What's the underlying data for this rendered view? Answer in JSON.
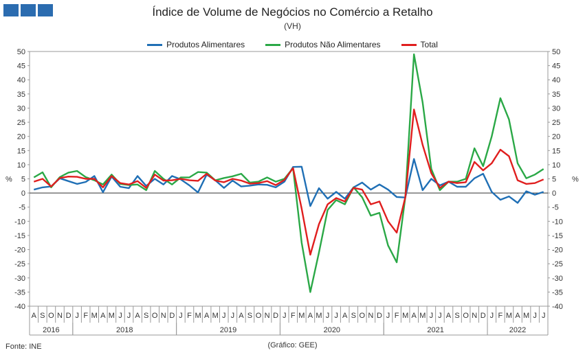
{
  "title": "Índice de Volume de Negócios no Comércio a Retalho",
  "subtitle": "(VH)",
  "source": "Fonte: INE",
  "credit": "(Gráfico: GEE)",
  "chart_data": {
    "type": "line",
    "yunit_label": "%",
    "ylim": [
      -40,
      50
    ],
    "yticks": [
      50,
      45,
      40,
      35,
      30,
      25,
      20,
      15,
      10,
      5,
      0,
      -5,
      -10,
      -15,
      -20,
      -25,
      -30,
      -35,
      -40
    ],
    "x": [
      "A",
      "S",
      "O",
      "N",
      "D",
      "J",
      "F",
      "M",
      "A",
      "M",
      "J",
      "J",
      "A",
      "S",
      "O",
      "N",
      "D",
      "J",
      "F",
      "M",
      "A",
      "M",
      "J",
      "J",
      "A",
      "S",
      "O",
      "N",
      "D",
      "J",
      "F",
      "M",
      "A",
      "M",
      "J",
      "J",
      "A",
      "S",
      "O",
      "N",
      "D",
      "J",
      "F",
      "M",
      "A",
      "M",
      "J",
      "J",
      "A",
      "S",
      "O",
      "N",
      "D",
      "J",
      "F",
      "M",
      "A",
      "M",
      "J",
      "J"
    ],
    "years": [
      {
        "label": "2016",
        "start": 0,
        "end": 4
      },
      {
        "label": "2018",
        "start": 5,
        "end": 16
      },
      {
        "label": "2019",
        "start": 17,
        "end": 28
      },
      {
        "label": "2020",
        "start": 29,
        "end": 40
      },
      {
        "label": "2021",
        "start": 41,
        "end": 52
      },
      {
        "label": "2022",
        "start": 53,
        "end": 59
      }
    ],
    "series": [
      {
        "name": "Produtos Alimentares",
        "color": "#1f6fb5",
        "values": [
          1.2,
          2.0,
          2.3,
          5.2,
          4.2,
          3.2,
          3.9,
          6.0,
          0.3,
          5.8,
          2.2,
          1.7,
          6.0,
          2.5,
          5.0,
          3.0,
          6.0,
          4.8,
          2.7,
          0.2,
          6.5,
          4.5,
          1.8,
          4.4,
          2.3,
          2.6,
          3.0,
          2.9,
          2.0,
          4.0,
          9.2,
          9.3,
          -4.6,
          1.7,
          -2.0,
          0.4,
          -2.0,
          2.0,
          3.7,
          1.2,
          3.0,
          1.2,
          -1.4,
          -1.6,
          12.0,
          1.0,
          5.0,
          2.7,
          4.0,
          2.2,
          2.2,
          5.2,
          6.8,
          0.4,
          -2.4,
          -1.2,
          -3.5,
          0.6,
          -0.6,
          0.4
        ]
      },
      {
        "name": "Produtos Não Alimentares",
        "color": "#2aa846",
        "values": [
          5.5,
          7.3,
          2.0,
          5.6,
          7.2,
          7.8,
          5.6,
          4.5,
          3.0,
          6.5,
          3.2,
          2.8,
          3.0,
          1.0,
          7.8,
          5.0,
          3.0,
          5.5,
          5.5,
          7.4,
          7.2,
          4.5,
          5.3,
          5.9,
          6.8,
          3.7,
          4.0,
          5.5,
          4.0,
          5.0,
          8.8,
          -17.5,
          -35.0,
          -21.0,
          -6.0,
          -2.5,
          -4.0,
          2.0,
          -1.5,
          -8.0,
          -7.0,
          -18.5,
          -24.5,
          -1.5,
          49.0,
          32.0,
          8.5,
          1.0,
          4.0,
          4.0,
          5.0,
          15.8,
          9.5,
          20.0,
          33.5,
          26.0,
          10.5,
          5.2,
          6.5,
          8.5
        ]
      },
      {
        "name": "Total",
        "color": "#e01e1e",
        "values": [
          4.0,
          5.0,
          2.3,
          5.3,
          5.8,
          5.7,
          5.0,
          5.0,
          2.0,
          6.0,
          3.5,
          3.0,
          4.2,
          1.8,
          6.5,
          4.4,
          4.5,
          5.0,
          4.5,
          4.3,
          6.8,
          4.4,
          3.8,
          5.0,
          4.4,
          3.3,
          3.5,
          4.2,
          2.8,
          4.6,
          8.8,
          -5.5,
          -21.8,
          -11.0,
          -4.0,
          -1.8,
          -3.0,
          1.8,
          1.2,
          -4.0,
          -3.0,
          -10.0,
          -14.0,
          -1.5,
          29.5,
          17.0,
          7.0,
          1.8,
          4.0,
          3.5,
          3.8,
          11.0,
          8.0,
          10.5,
          15.3,
          13.0,
          4.5,
          3.2,
          3.5,
          4.8
        ]
      }
    ]
  }
}
